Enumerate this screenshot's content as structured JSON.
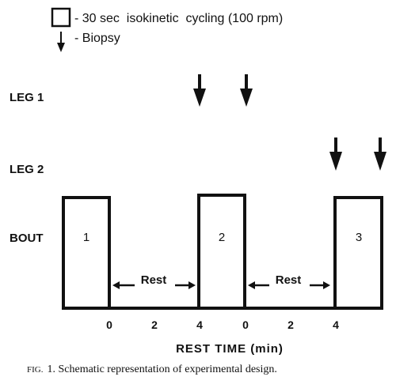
{
  "legend": {
    "box_text": "- 30 sec  isokinetic  cycling (100 rpm)",
    "arrow_text": "- Biopsy"
  },
  "rows": {
    "leg1": "LEG 1",
    "leg2": "LEG 2",
    "bout": "BOUT"
  },
  "bouts": [
    "1",
    "2",
    "3"
  ],
  "rest_label": "Rest",
  "rest_ticks_1": [
    "0",
    "2",
    "4"
  ],
  "rest_ticks_2": [
    "0",
    "2",
    "4"
  ],
  "axis_label": "REST TIME (min)",
  "caption": {
    "prefix": "FIG.",
    "text": "1. Schematic representation of experimental design."
  },
  "colors": {
    "ink": "#111111",
    "background": "#ffffff"
  }
}
